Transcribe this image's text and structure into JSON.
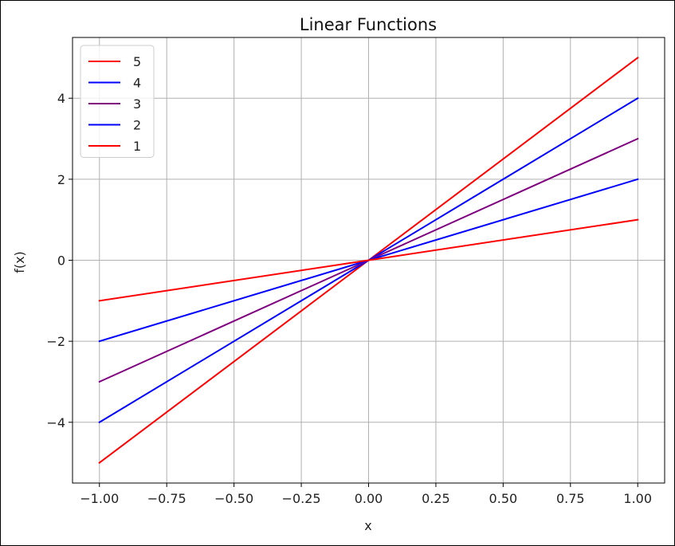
{
  "chart_data": {
    "type": "line",
    "title": "Linear Functions",
    "xlabel": "x",
    "ylabel": "f(x)",
    "xlim": [
      -1.1,
      1.1
    ],
    "ylim": [
      -5.5,
      5.5
    ],
    "grid": true,
    "legend_position": "top-left",
    "x_ticks": [
      -1.0,
      -0.75,
      -0.5,
      -0.25,
      0.0,
      0.25,
      0.5,
      0.75,
      1.0
    ],
    "x_tick_labels": [
      "−1.00",
      "−0.75",
      "−0.50",
      "−0.25",
      "0.00",
      "0.25",
      "0.50",
      "0.75",
      "1.00"
    ],
    "y_ticks": [
      -4,
      -2,
      0,
      2,
      4
    ],
    "y_tick_labels": [
      "−4",
      "−2",
      "0",
      "2",
      "4"
    ],
    "x": [
      -1.0,
      0.0,
      1.0
    ],
    "series": [
      {
        "name": "5",
        "color": "#ff0000",
        "values": [
          -5,
          0,
          5
        ]
      },
      {
        "name": "4",
        "color": "#0000ff",
        "values": [
          -4,
          0,
          4
        ]
      },
      {
        "name": "3",
        "color": "#800080",
        "values": [
          -3,
          0,
          3
        ]
      },
      {
        "name": "2",
        "color": "#0000ff",
        "values": [
          -2,
          0,
          2
        ]
      },
      {
        "name": "1",
        "color": "#ff0000",
        "values": [
          -1,
          0,
          1
        ]
      }
    ]
  }
}
